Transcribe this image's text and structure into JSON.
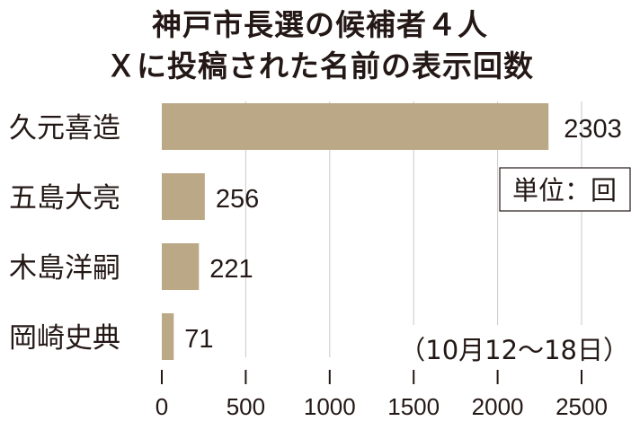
{
  "chart_data": {
    "type": "bar",
    "orientation": "horizontal",
    "title": "神戸市長選の候補者４人",
    "subtitle": "Ｘに投稿された名前の表示回数",
    "categories": [
      "久元喜造",
      "五島大亮",
      "木島洋嗣",
      "岡崎史典"
    ],
    "values": [
      2303,
      256,
      221,
      71
    ],
    "xlim": [
      0,
      2500
    ],
    "xticks": [
      0,
      500,
      1000,
      1500,
      2000,
      2500
    ],
    "unit_label": "単位：回",
    "period_note": "（10月12～18日）",
    "grid": true,
    "bar_color": "#bba886"
  }
}
